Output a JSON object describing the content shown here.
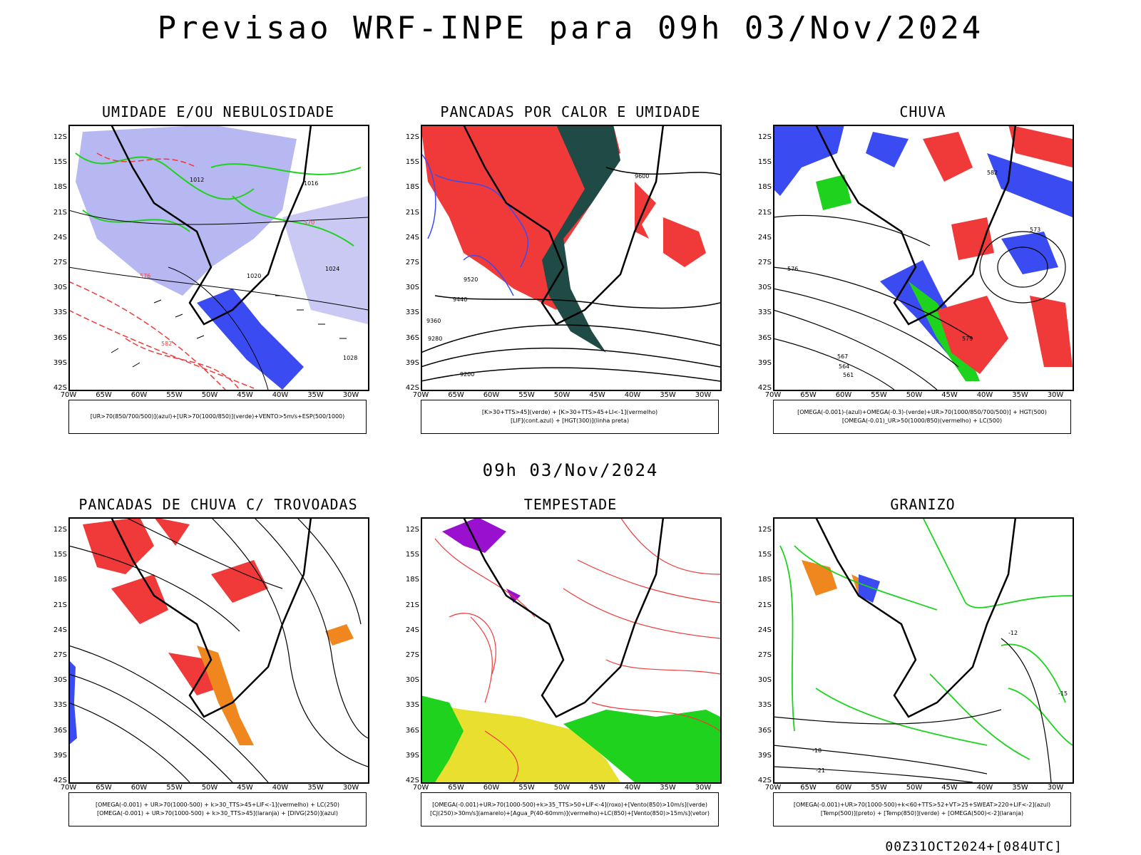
{
  "header": {
    "title": "Previsao WRF-INPE  para 09h 03/Nov/2024",
    "mid_time": "09h 03/Nov/2024",
    "run_stamp": "00Z31OCT2024+[084UTC]"
  },
  "axes": {
    "lat_labels": [
      "12S",
      "15S",
      "18S",
      "21S",
      "24S",
      "27S",
      "30S",
      "33S",
      "36S",
      "39S",
      "42S"
    ],
    "lon_labels": [
      "70W",
      "65W",
      "60W",
      "55W",
      "50W",
      "45W",
      "40W",
      "35W",
      "30W"
    ]
  },
  "panels": [
    {
      "id": "umidade",
      "title": "UMIDADE E/OU NEBULOSIDADE",
      "legend_lines": [
        "[UR>70(850/700/500)](azul)+[UR>70(1000/850)](verde)+VENTO>5m/s+ESP(500/1000)"
      ],
      "contour_labels": [
        "1012",
        "1016",
        "1020",
        "1024",
        "1028",
        "570",
        "576",
        "582"
      ]
    },
    {
      "id": "pancadas-calor",
      "title": "PANCADAS POR CALOR E UMIDADE",
      "legend_lines": [
        "[K>30+TTS>45](verde) + [K>30+TTS>45+LI<-1](vermelho)",
        "[LIF](cont.azul) + [HGT(300)](linha preta)"
      ],
      "contour_labels": [
        "9600",
        "9520",
        "9440",
        "9360",
        "9280",
        "9200"
      ]
    },
    {
      "id": "chuva",
      "title": "CHUVA",
      "legend_lines": [
        "[OMEGA(-0.001)-(azul)+OMEGA(-0.3)-(verde)+UR>70(1000/850/700/500)] + HGT(500)",
        "[OMEGA(-0.01)_UR>50(1000/850)(vermelho) + LC(500)"
      ],
      "contour_labels": [
        "582",
        "579",
        "576",
        "573",
        "567",
        "564",
        "561"
      ]
    },
    {
      "id": "trovoadas",
      "title": "PANCADAS DE CHUVA C/ TROVOADAS",
      "legend_lines": [
        "[OMEGA(-0.001) + UR>70(1000-500) + k>30_TTS>45+LIF<-1](vermelho) + LC(250)",
        "[OMEGA(-0.001) + UR>70(1000-500) + k>30_TTS>45](laranja) + [DIVG(250)](azul)"
      ],
      "contour_labels": []
    },
    {
      "id": "tempestade",
      "title": "TEMPESTADE",
      "legend_lines": [
        "[OMEGA(-0.001)+UR>70(1000-500)+k>35_TTS>50+LIF<-4](roxo)+[Vento(850)>10m/s](verde)",
        "[CJ(250)>30m/s](amarelo)+[Agua_P(40-60mm)](vermelho)+LC(850)+[Vento(850)>15m/s](vetor)"
      ],
      "contour_labels": []
    },
    {
      "id": "granizo",
      "title": "GRANIZO",
      "legend_lines": [
        "[OMEGA(-0.001)+UR>70(1000-500)+k<60+TTS>52+VT>25+SWEAT>220+LIF<-2](azul)",
        "[Temp(500)](preto) + [Temp(850)](verde) + [OMEGA(500)<-2](laranja)"
      ],
      "contour_labels": [
        "-12",
        "-15",
        "-18",
        "-21"
      ]
    }
  ],
  "colors": {
    "red": "#f03a3a",
    "green": "#1ed21e",
    "blue": "#3b4bf2",
    "lavender": "#b7b7f2",
    "dark_teal": "#1f4a46",
    "orange": "#f0861e",
    "yellow": "#e8df2e",
    "purple": "#9a10cf"
  }
}
